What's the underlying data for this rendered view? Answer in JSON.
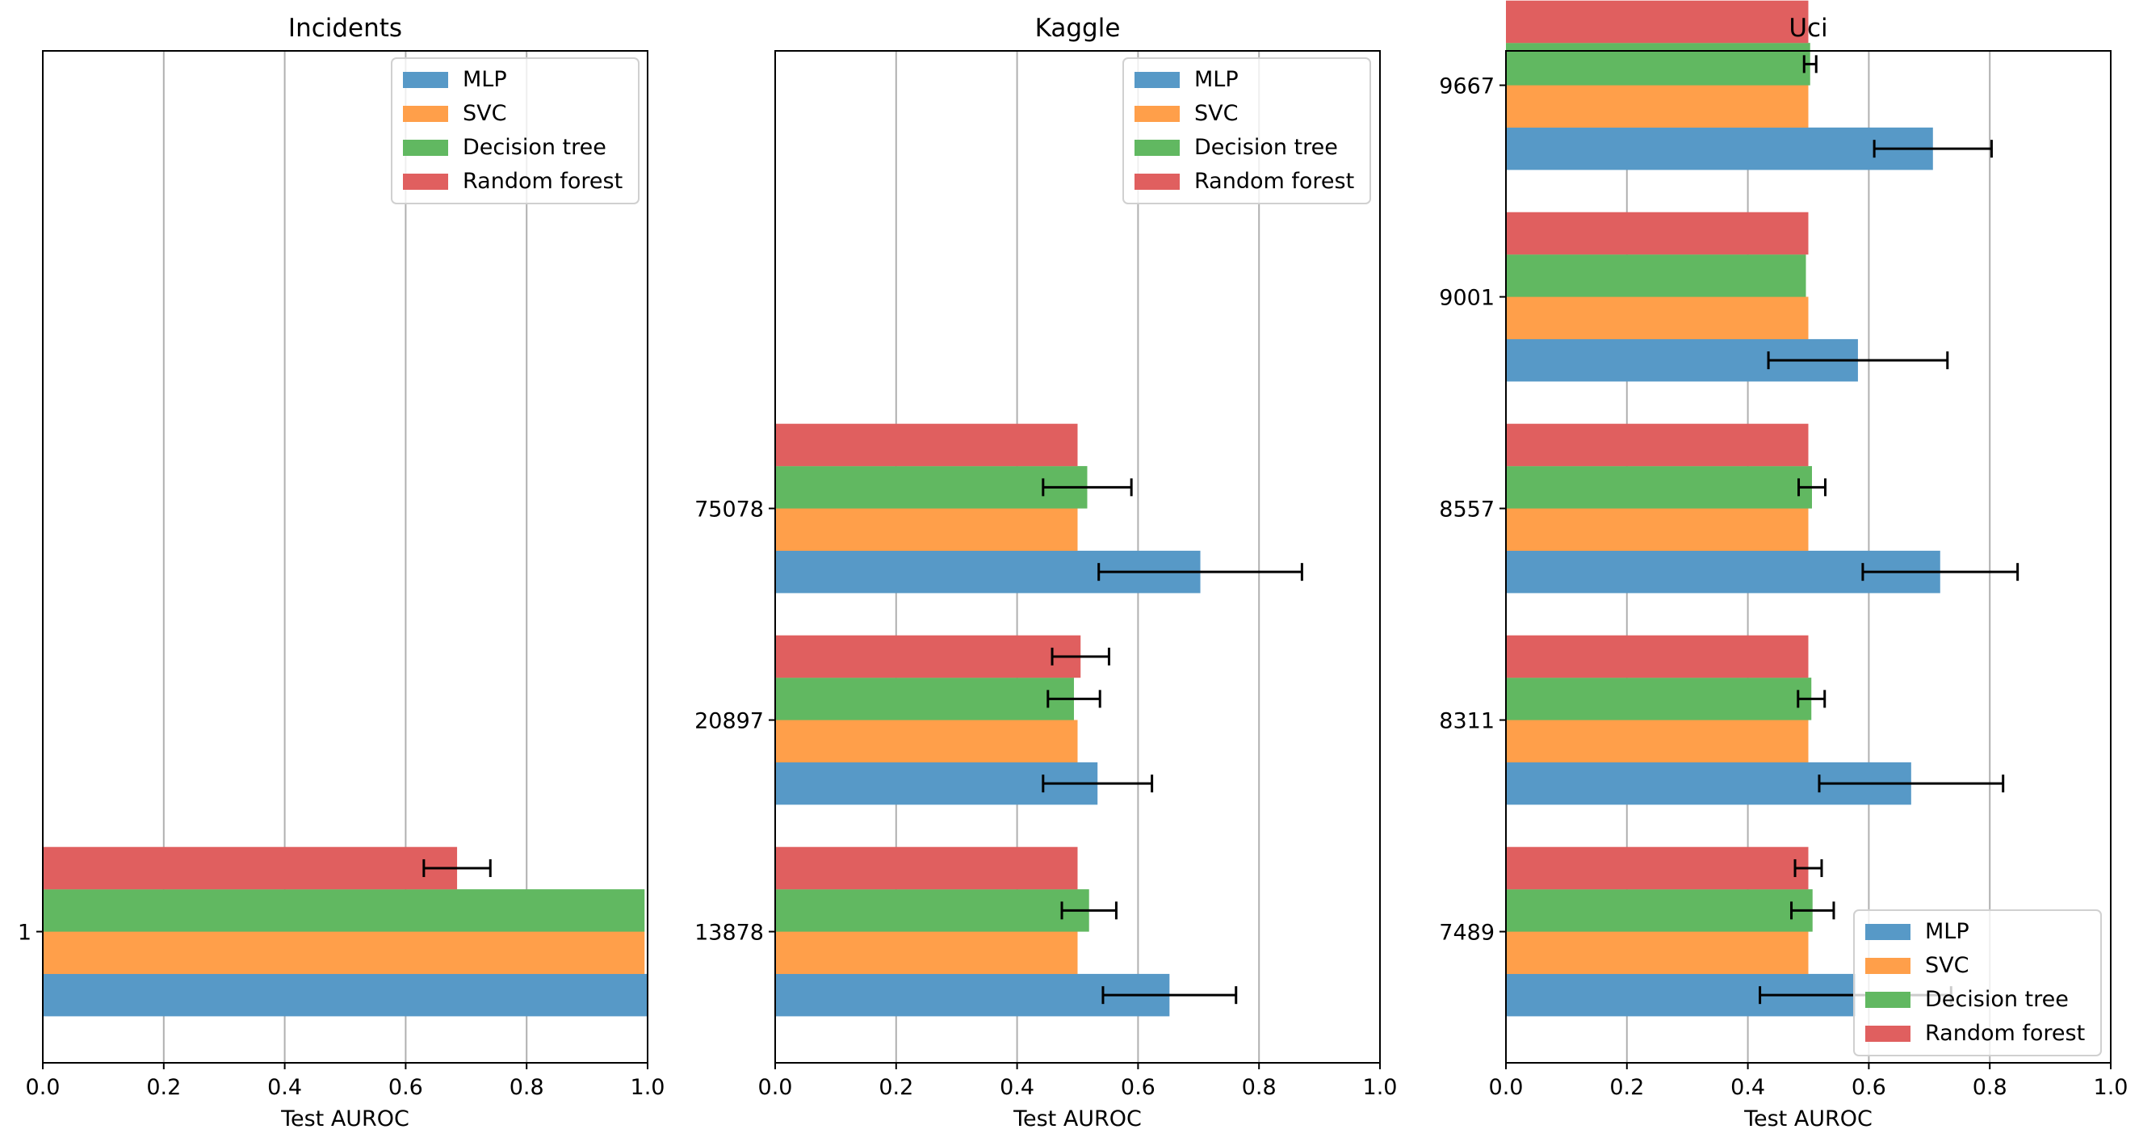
{
  "colors": {
    "MLP": "#5799c7",
    "SVC": "#ff9f4a",
    "Decision tree": "#61b861",
    "Random forest": "#e05f5f",
    "grid": "#b0b0b0",
    "errorbar": "#000000"
  },
  "chart_data": [
    {
      "type": "bar",
      "orientation": "horizontal",
      "title": "Incidents",
      "xlabel": "Test AUROC",
      "ylabel": "",
      "xlim": [
        0,
        1
      ],
      "xticks": [
        "0.0",
        "0.2",
        "0.4",
        "0.6",
        "0.8",
        "1.0"
      ],
      "grid": "x",
      "legend": "upper right",
      "categories": [
        "1"
      ],
      "series": [
        {
          "name": "MLP",
          "values": [
            1.0
          ],
          "errors": [
            null
          ]
        },
        {
          "name": "SVC",
          "values": [
            0.995
          ],
          "errors": [
            null
          ]
        },
        {
          "name": "Decision tree",
          "values": [
            0.995
          ],
          "errors": [
            null
          ]
        },
        {
          "name": "Random forest",
          "values": [
            0.685
          ],
          "errors": [
            0.055
          ]
        }
      ]
    },
    {
      "type": "bar",
      "orientation": "horizontal",
      "title": "Kaggle",
      "xlabel": "Test AUROC",
      "ylabel": "",
      "xlim": [
        0,
        1
      ],
      "xticks": [
        "0.0",
        "0.2",
        "0.4",
        "0.6",
        "0.8",
        "1.0"
      ],
      "grid": "x",
      "legend": "upper right",
      "categories": [
        "13878",
        "20897",
        "75078"
      ],
      "series": [
        {
          "name": "MLP",
          "values": [
            0.652,
            0.533,
            0.703
          ],
          "errors": [
            0.11,
            0.09,
            0.168
          ]
        },
        {
          "name": "SVC",
          "values": [
            0.5,
            0.5,
            0.5
          ],
          "errors": [
            null,
            null,
            null
          ]
        },
        {
          "name": "Decision tree",
          "values": [
            0.519,
            0.494,
            0.516
          ],
          "errors": [
            0.045,
            0.043,
            0.073
          ]
        },
        {
          "name": "Random forest",
          "values": [
            0.5,
            0.505,
            0.5
          ],
          "errors": [
            null,
            0.047,
            null
          ]
        }
      ]
    },
    {
      "type": "bar",
      "orientation": "horizontal",
      "title": "Uci",
      "xlabel": "Test AUROC",
      "ylabel": "",
      "xlim": [
        0,
        1
      ],
      "xticks": [
        "0.0",
        "0.2",
        "0.4",
        "0.6",
        "0.8",
        "1.0"
      ],
      "grid": "x",
      "legend": "lower right",
      "categories": [
        "7489",
        "8311",
        "8557",
        "9001",
        "9667"
      ],
      "series": [
        {
          "name": "MLP",
          "values": [
            0.578,
            0.67,
            0.718,
            0.582,
            0.706
          ],
          "errors": [
            0.158,
            0.152,
            0.128,
            0.148,
            0.097
          ]
        },
        {
          "name": "SVC",
          "values": [
            0.5,
            0.5,
            0.5,
            0.5,
            0.5
          ],
          "errors": [
            null,
            null,
            null,
            null,
            null
          ]
        },
        {
          "name": "Decision tree",
          "values": [
            0.507,
            0.505,
            0.506,
            0.496,
            0.503
          ],
          "errors": [
            0.035,
            0.022,
            0.022,
            null,
            0.01
          ]
        },
        {
          "name": "Random forest",
          "values": [
            0.5,
            0.5,
            0.5,
            0.5,
            0.5
          ],
          "errors": [
            0.022,
            null,
            null,
            null,
            null
          ]
        }
      ]
    }
  ]
}
